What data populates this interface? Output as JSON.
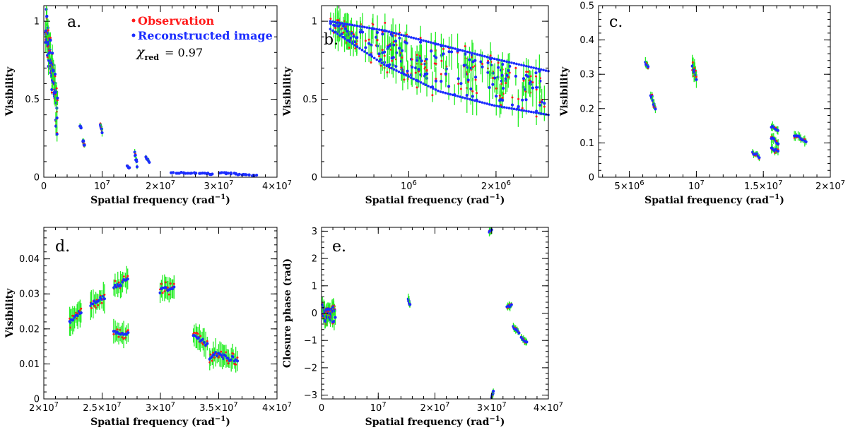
{
  "colors": {
    "observation": "#ff1a1a",
    "reconstruction": "#1a2cff",
    "errorbar": "#22ee22"
  },
  "legend": {
    "observation": "Observation",
    "reconstruction": "Reconstructed image",
    "chi_symbol": "χ",
    "chi_subscript": "red",
    "chi_value": "= 0.97"
  },
  "chart_data": [
    {
      "panel": "a.",
      "type": "scatter",
      "xlabel": "Spatial frequency (rad",
      "xlabel_sup": "−1",
      "xlabel_end": ")",
      "ylabel": "Visibility",
      "xlim": [
        0,
        40000000
      ],
      "ylim": [
        0,
        1.1
      ],
      "xticks": [
        {
          "v": 0,
          "t": "0"
        },
        {
          "v": 10000000,
          "t": "10",
          "sup": "7"
        },
        {
          "v": 20000000,
          "t": "2×10",
          "sup": "7"
        },
        {
          "v": 30000000,
          "t": "3×10",
          "sup": "7"
        },
        {
          "v": 40000000,
          "t": "4×10",
          "sup": "7"
        }
      ],
      "yticks": [
        {
          "v": 0,
          "t": "0"
        },
        {
          "v": 0.5,
          "t": "0.5"
        },
        {
          "v": 1,
          "t": "1"
        }
      ],
      "clusters": [
        {
          "x0": 300000,
          "x1": 2300000,
          "y0": 0.98,
          "y1": 0.42,
          "spread": 0.18,
          "err": 0.05,
          "n": 70
        },
        {
          "x0": 6200000,
          "x1": 6400000,
          "y0": 0.33,
          "y1": 0.32,
          "spread": 0.01,
          "err": 0.015,
          "n": 4
        },
        {
          "x0": 6700000,
          "x1": 7000000,
          "y0": 0.24,
          "y1": 0.2,
          "spread": 0.02,
          "err": 0.015,
          "n": 6
        },
        {
          "x0": 9700000,
          "x1": 10000000,
          "y0": 0.34,
          "y1": 0.29,
          "spread": 0.02,
          "err": 0.02,
          "n": 6
        },
        {
          "x0": 14300000,
          "x1": 14700000,
          "y0": 0.07,
          "y1": 0.06,
          "spread": 0.005,
          "err": 0.008,
          "n": 5
        },
        {
          "x0": 15600000,
          "x1": 16000000,
          "y0": 0.15,
          "y1": 0.08,
          "spread": 0.03,
          "err": 0.015,
          "n": 8
        },
        {
          "x0": 17500000,
          "x1": 18100000,
          "y0": 0.13,
          "y1": 0.1,
          "spread": 0.01,
          "err": 0.01,
          "n": 6
        },
        {
          "x0": 22000000,
          "x1": 29000000,
          "y0": 0.03,
          "y1": 0.02,
          "spread": 0.006,
          "err": 0.004,
          "n": 24
        },
        {
          "x0": 30000000,
          "x1": 36500000,
          "y0": 0.03,
          "y1": 0.01,
          "spread": 0.006,
          "err": 0.004,
          "n": 24
        }
      ]
    },
    {
      "panel": "b.",
      "type": "scatter",
      "xlabel": "Spatial frequency (rad",
      "xlabel_sup": "−1",
      "xlabel_end": ")",
      "ylabel": "Visibility",
      "xlim": [
        0,
        2600000
      ],
      "ylim": [
        0,
        1.1
      ],
      "xticks": [
        {
          "v": 1000000,
          "t": "10",
          "sup": "6"
        },
        {
          "v": 2000000,
          "t": "2×10",
          "sup": "6"
        }
      ],
      "yticks": [
        {
          "v": 0,
          "t": "0"
        },
        {
          "v": 0.5,
          "t": "0.5"
        },
        {
          "v": 1,
          "t": "1"
        }
      ],
      "bands": {
        "x0": 100000,
        "x1": 2600000,
        "lower": [
          0.95,
          0.72,
          0.55,
          0.46,
          0.4
        ],
        "upper": [
          1.0,
          0.94,
          0.85,
          0.76,
          0.68
        ],
        "err": 0.09,
        "n": 180
      }
    },
    {
      "panel": "c.",
      "type": "scatter",
      "xlabel": "Spatial frequency (rad",
      "xlabel_sup": "−1",
      "xlabel_end": ")",
      "ylabel": "Visibility",
      "xlim": [
        2700000,
        20000000
      ],
      "ylim": [
        0,
        0.5
      ],
      "xticks": [
        {
          "v": 5000000,
          "t": "5×10",
          "sup": "6"
        },
        {
          "v": 10000000,
          "t": "10",
          "sup": "7"
        },
        {
          "v": 15000000,
          "t": "1.5×10",
          "sup": "7"
        },
        {
          "v": 20000000,
          "t": "2×10",
          "sup": "7"
        }
      ],
      "yticks": [
        {
          "v": 0,
          "t": "0"
        },
        {
          "v": 0.1,
          "t": "0.1"
        },
        {
          "v": 0.2,
          "t": "0.2"
        },
        {
          "v": 0.3,
          "t": "0.3"
        },
        {
          "v": 0.4,
          "t": "0.4"
        },
        {
          "v": 0.5,
          "t": "0.5"
        }
      ],
      "clusters": [
        {
          "x0": 6200000,
          "x1": 6400000,
          "y0": 0.335,
          "y1": 0.32,
          "spread": 0.005,
          "err": 0.012,
          "n": 6
        },
        {
          "x0": 6600000,
          "x1": 6950000,
          "y0": 0.24,
          "y1": 0.195,
          "spread": 0.01,
          "err": 0.015,
          "n": 8
        },
        {
          "x0": 9700000,
          "x1": 10000000,
          "y0": 0.335,
          "y1": 0.285,
          "spread": 0.015,
          "err": 0.025,
          "n": 10
        },
        {
          "x0": 14200000,
          "x1": 14700000,
          "y0": 0.072,
          "y1": 0.06,
          "spread": 0.005,
          "err": 0.008,
          "n": 7
        },
        {
          "x0": 15600000,
          "x1": 16100000,
          "y0": 0.15,
          "y1": 0.135,
          "spread": 0.005,
          "err": 0.012,
          "n": 7
        },
        {
          "x0": 15600000,
          "x1": 16100000,
          "y0": 0.115,
          "y1": 0.1,
          "spread": 0.005,
          "err": 0.012,
          "n": 7
        },
        {
          "x0": 15600000,
          "x1": 16100000,
          "y0": 0.085,
          "y1": 0.075,
          "spread": 0.005,
          "err": 0.012,
          "n": 7
        },
        {
          "x0": 17300000,
          "x1": 18200000,
          "y0": 0.125,
          "y1": 0.105,
          "spread": 0.005,
          "err": 0.012,
          "n": 10
        }
      ]
    },
    {
      "panel": "d.",
      "type": "scatter",
      "xlabel": "Spatial frequency (rad",
      "xlabel_sup": "−1",
      "xlabel_end": ")",
      "ylabel": "Visibility",
      "xlim": [
        20000000,
        40000000
      ],
      "ylim": [
        0,
        0.049
      ],
      "xticks": [
        {
          "v": 20000000,
          "t": "2×10",
          "sup": "7"
        },
        {
          "v": 25000000,
          "t": "2.5×10",
          "sup": "7"
        },
        {
          "v": 30000000,
          "t": "3×10",
          "sup": "7"
        },
        {
          "v": 35000000,
          "t": "3.5×10",
          "sup": "7"
        },
        {
          "v": 40000000,
          "t": "4×10",
          "sup": "7"
        }
      ],
      "yticks": [
        {
          "v": 0,
          "t": "0"
        },
        {
          "v": 0.01,
          "t": "0.01"
        },
        {
          "v": 0.02,
          "t": "0.02"
        },
        {
          "v": 0.03,
          "t": "0.03"
        },
        {
          "v": 0.04,
          "t": "0.04"
        }
      ],
      "clusters": [
        {
          "x0": 22200000,
          "x1": 23200000,
          "y0": 0.022,
          "y1": 0.025,
          "spread": 0.001,
          "err": 0.003,
          "n": 12
        },
        {
          "x0": 24000000,
          "x1": 25200000,
          "y0": 0.027,
          "y1": 0.029,
          "spread": 0.001,
          "err": 0.003,
          "n": 12
        },
        {
          "x0": 26000000,
          "x1": 27200000,
          "y0": 0.032,
          "y1": 0.034,
          "spread": 0.001,
          "err": 0.003,
          "n": 12
        },
        {
          "x0": 26000000,
          "x1": 27200000,
          "y0": 0.019,
          "y1": 0.0185,
          "spread": 0.001,
          "err": 0.003,
          "n": 12
        },
        {
          "x0": 30000000,
          "x1": 31200000,
          "y0": 0.031,
          "y1": 0.032,
          "spread": 0.001,
          "err": 0.003,
          "n": 12
        },
        {
          "x0": 32800000,
          "x1": 34000000,
          "y0": 0.018,
          "y1": 0.016,
          "spread": 0.001,
          "err": 0.003,
          "n": 12
        },
        {
          "x0": 34200000,
          "x1": 35400000,
          "y0": 0.012,
          "y1": 0.013,
          "spread": 0.001,
          "err": 0.003,
          "n": 12
        },
        {
          "x0": 35400000,
          "x1": 36600000,
          "y0": 0.012,
          "y1": 0.0115,
          "spread": 0.001,
          "err": 0.003,
          "n": 12
        }
      ]
    },
    {
      "panel": "e.",
      "type": "scatter",
      "xlabel": "Spatial frequency (rad",
      "xlabel_sup": "−1",
      "xlabel_end": ")",
      "ylabel": "Closure phase (rad)",
      "xlim": [
        0,
        40000000
      ],
      "ylim": [
        -3.14,
        3.14
      ],
      "xticks": [
        {
          "v": 0,
          "t": "0"
        },
        {
          "v": 10000000,
          "t": "10",
          "sup": "7"
        },
        {
          "v": 20000000,
          "t": "2×10",
          "sup": "7"
        },
        {
          "v": 30000000,
          "t": "3×10",
          "sup": "7"
        },
        {
          "v": 40000000,
          "t": "4×10",
          "sup": "7"
        }
      ],
      "yticks": [
        {
          "v": -3,
          "t": "−3"
        },
        {
          "v": -2,
          "t": "−2"
        },
        {
          "v": -1,
          "t": "−1"
        },
        {
          "v": 0,
          "t": "0"
        },
        {
          "v": 1,
          "t": "1"
        },
        {
          "v": 2,
          "t": "2"
        },
        {
          "v": 3,
          "t": "3"
        }
      ],
      "clusters": [
        {
          "x0": 200000,
          "x1": 2400000,
          "y0": 0.0,
          "y1": 0.0,
          "spread": 0.35,
          "err": 0.25,
          "n": 40
        },
        {
          "x0": 15300000,
          "x1": 15600000,
          "y0": 0.5,
          "y1": 0.3,
          "spread": 0.05,
          "err": 0.15,
          "n": 6
        },
        {
          "x0": 29600000,
          "x1": 30000000,
          "y0": 2.95,
          "y1": 3.05,
          "spread": 0.05,
          "err": 0.12,
          "n": 5
        },
        {
          "x0": 30000000,
          "x1": 30300000,
          "y0": -3.05,
          "y1": -2.9,
          "spread": 0.05,
          "err": 0.12,
          "n": 5
        },
        {
          "x0": 32700000,
          "x1": 33500000,
          "y0": 0.2,
          "y1": 0.3,
          "spread": 0.05,
          "err": 0.12,
          "n": 7
        },
        {
          "x0": 33800000,
          "x1": 34800000,
          "y0": -0.5,
          "y1": -0.7,
          "spread": 0.05,
          "err": 0.12,
          "n": 8
        },
        {
          "x0": 35200000,
          "x1": 36200000,
          "y0": -0.9,
          "y1": -1.05,
          "spread": 0.05,
          "err": 0.12,
          "n": 8
        }
      ]
    }
  ]
}
